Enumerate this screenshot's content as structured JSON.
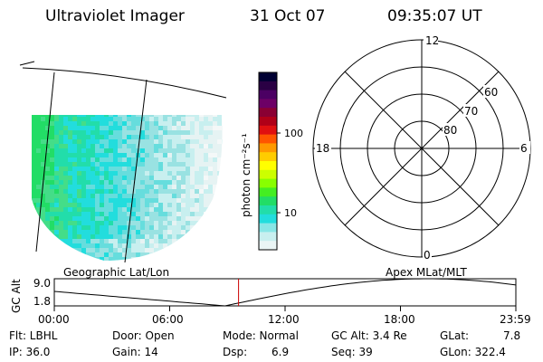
{
  "header": {
    "title": "Ultraviolet Imager",
    "date": "31 Oct 07",
    "time": "09:35:07 UT"
  },
  "geo_panel": {
    "label": "Geographic Lat/Lon"
  },
  "colorbar": {
    "unit_label": "photon cm⁻²s⁻¹",
    "ticks": [
      "100",
      "10"
    ],
    "colors": [
      "#000033",
      "#2a0044",
      "#4b0063",
      "#6d0066",
      "#8a0033",
      "#b00018",
      "#e01010",
      "#ff5500",
      "#ff9900",
      "#ffcc00",
      "#ffff00",
      "#ccff00",
      "#88ff00",
      "#44ee22",
      "#22dd66",
      "#22ddaa",
      "#22dddd",
      "#88e6e6",
      "#c8efef",
      "#eaf5f5"
    ]
  },
  "polar": {
    "label": "Apex MLat/MLT",
    "mlt_labels": {
      "top": "12",
      "left": "18",
      "right": "6",
      "bottom": "0"
    },
    "lat_labels": [
      "60",
      "70",
      "80"
    ]
  },
  "altitude_plot": {
    "ylabel": "GC Alt",
    "yticks": [
      "9.0",
      "1.8"
    ],
    "xticks": [
      "00:00",
      "06:00",
      "12:00",
      "18:00",
      "23:59"
    ],
    "current_time_marker": "09:35",
    "marker_color": "#cc0000"
  },
  "info": {
    "filter": "Flt: LBHL",
    "ip": "IP: 36.0",
    "door": "Door: Open",
    "gain": "Gain: 14",
    "mode": "Mode: Normal",
    "dsp_label": "Dsp:",
    "dsp_value": "6.9",
    "gc_alt": "GC Alt: 3.4 Re",
    "seq": "Seq: 39",
    "glat_label": "GLat:",
    "glat_value": "7.8",
    "glon": "GLon: 322.4"
  }
}
